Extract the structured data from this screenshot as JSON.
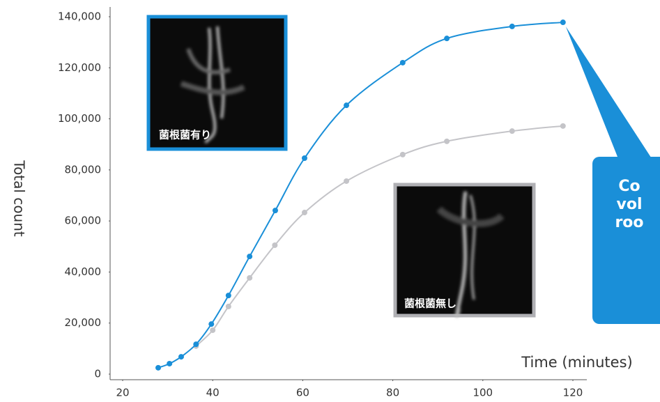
{
  "chart_data": {
    "type": "line",
    "x_label": "Time (minutes)",
    "y_label": "Total count",
    "xlim": [
      20,
      120
    ],
    "xticks": [
      20,
      40,
      60,
      80,
      100,
      120
    ],
    "ylim": [
      0,
      140000
    ],
    "yticks": [
      0,
      {
        "value": 20000,
        "label": "20,000"
      },
      {
        "value": 40000,
        "label": "40,000"
      },
      {
        "value": 60000,
        "label": "60,000"
      },
      {
        "value": 80000,
        "label": "80,000"
      },
      {
        "value": 100000,
        "label": "100,000"
      },
      {
        "value": 120000,
        "label": "120,000"
      },
      {
        "value": 140000,
        "label": "140,000"
      }
    ],
    "series": [
      {
        "color": "#1a8fd8",
        "x": [
          27.9,
          30.4,
          33,
          36.3,
          39.7,
          43.5,
          48.2,
          53.9,
          60.4,
          69.7,
          82.2,
          92,
          106.5,
          117.8
        ],
        "values": [
          2500,
          4100,
          6800,
          11700,
          19600,
          30800,
          46100,
          64100,
          84600,
          105300,
          122000,
          131500,
          136200,
          137800
        ]
      },
      {
        "color": "#c4c4c8",
        "x": [
          36.3,
          40,
          43.5,
          48.2,
          53.8,
          60.4,
          69.7,
          82.2,
          92,
          106.5,
          117.8
        ],
        "values": [
          11000,
          17200,
          26500,
          37700,
          50500,
          63300,
          75600,
          86000,
          91200,
          95200,
          97200
        ]
      }
    ],
    "insets": [
      {
        "label": "菌根菌有り",
        "color": "#1a8fd8"
      },
      {
        "label": "菌根菌無し",
        "color": "#b0b0b4"
      }
    ],
    "callout": {
      "lines": [
        "Co",
        "vol",
        "roo"
      ],
      "color": "#1a8fd8"
    }
  }
}
